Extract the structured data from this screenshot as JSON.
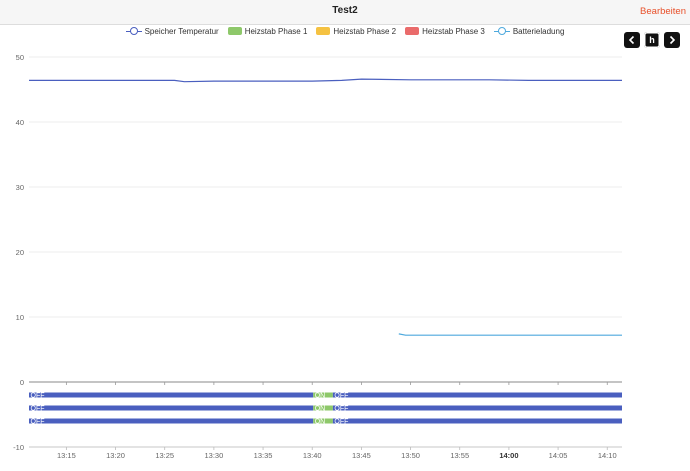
{
  "header": {
    "title": "Test2",
    "edit_label": "Bearbeiten"
  },
  "nav": {
    "prev_icon": "chevron-left",
    "period_label": "h",
    "next_icon": "chevron-right"
  },
  "colors": {
    "temperature": "#4a5fbf",
    "phase1": "#8ec86a",
    "phase2": "#f5c242",
    "phase3": "#ea6b6b",
    "battery": "#4ea9dd",
    "bar_off": "#4a5fbf",
    "bar_on": "#8ec86a"
  },
  "chart_data": {
    "type": "line",
    "legend": [
      {
        "name": "Speicher Temperatur",
        "kind": "line",
        "color_key": "temperature"
      },
      {
        "name": "Heizstab Phase 1",
        "kind": "box",
        "color_key": "phase1"
      },
      {
        "name": "Heizstab Phase 2",
        "kind": "box",
        "color_key": "phase2"
      },
      {
        "name": "Heizstab Phase 3",
        "kind": "box",
        "color_key": "phase3"
      },
      {
        "name": "Batterieladung",
        "kind": "line",
        "color_key": "battery"
      }
    ],
    "legend_position": "top-center",
    "y_ticks": [
      "50",
      "40",
      "30",
      "20",
      "10",
      "0",
      "-10"
    ],
    "ylim": [
      -10,
      50
    ],
    "grid": true,
    "x_ticks": [
      {
        "label": "13:15",
        "t": 15,
        "bold": false
      },
      {
        "label": "13:20",
        "t": 20,
        "bold": false
      },
      {
        "label": "13:25",
        "t": 25,
        "bold": false
      },
      {
        "label": "13:30",
        "t": 30,
        "bold": false
      },
      {
        "label": "13:35",
        "t": 35,
        "bold": false
      },
      {
        "label": "13:40",
        "t": 40,
        "bold": false
      },
      {
        "label": "13:45",
        "t": 45,
        "bold": false
      },
      {
        "label": "13:50",
        "t": 50,
        "bold": false
      },
      {
        "label": "13:55",
        "t": 55,
        "bold": false
      },
      {
        "label": "14:00",
        "t": 60,
        "bold": true
      },
      {
        "label": "14:05",
        "t": 65,
        "bold": false
      },
      {
        "label": "14:10",
        "t": 70,
        "bold": false
      }
    ],
    "x_range_minutes": [
      11.2,
      71.5
    ],
    "x_unit": "minutes after 13:00",
    "series": [
      {
        "name": "Speicher Temperatur",
        "color_key": "temperature",
        "points": [
          [
            11.2,
            46.4
          ],
          [
            20,
            46.4
          ],
          [
            26,
            46.4
          ],
          [
            27,
            46.2
          ],
          [
            30,
            46.3
          ],
          [
            35,
            46.3
          ],
          [
            40,
            46.3
          ],
          [
            43,
            46.4
          ],
          [
            45,
            46.6
          ],
          [
            50,
            46.5
          ],
          [
            55,
            46.5
          ],
          [
            58,
            46.5
          ],
          [
            62,
            46.4
          ],
          [
            66,
            46.4
          ],
          [
            71.5,
            46.4
          ]
        ]
      },
      {
        "name": "Batterieladung",
        "color_key": "battery",
        "points": [
          [
            48.8,
            7.4
          ],
          [
            49.5,
            7.2
          ],
          [
            55,
            7.2
          ],
          [
            60,
            7.2
          ],
          [
            65,
            7.2
          ],
          [
            71.5,
            7.2
          ]
        ]
      }
    ],
    "state_tracks": [
      {
        "name": "Heizstab Phase 1",
        "y": -2,
        "segments": [
          {
            "state": "OFF",
            "start": 11.2,
            "end": 40.1
          },
          {
            "state": "ON",
            "start": 40.1,
            "end": 42.1
          },
          {
            "state": "OFF",
            "start": 42.1,
            "end": 71.5
          }
        ]
      },
      {
        "name": "Heizstab Phase 2",
        "y": -4,
        "segments": [
          {
            "state": "OFF",
            "start": 11.2,
            "end": 40.1
          },
          {
            "state": "ON",
            "start": 40.1,
            "end": 42.1
          },
          {
            "state": "OFF",
            "start": 42.1,
            "end": 71.5
          }
        ]
      },
      {
        "name": "Heizstab Phase 3",
        "y": -6,
        "segments": [
          {
            "state": "OFF",
            "start": 11.2,
            "end": 40.1
          },
          {
            "state": "ON",
            "start": 40.1,
            "end": 42.1
          },
          {
            "state": "OFF",
            "start": 42.1,
            "end": 71.5
          }
        ]
      }
    ]
  }
}
